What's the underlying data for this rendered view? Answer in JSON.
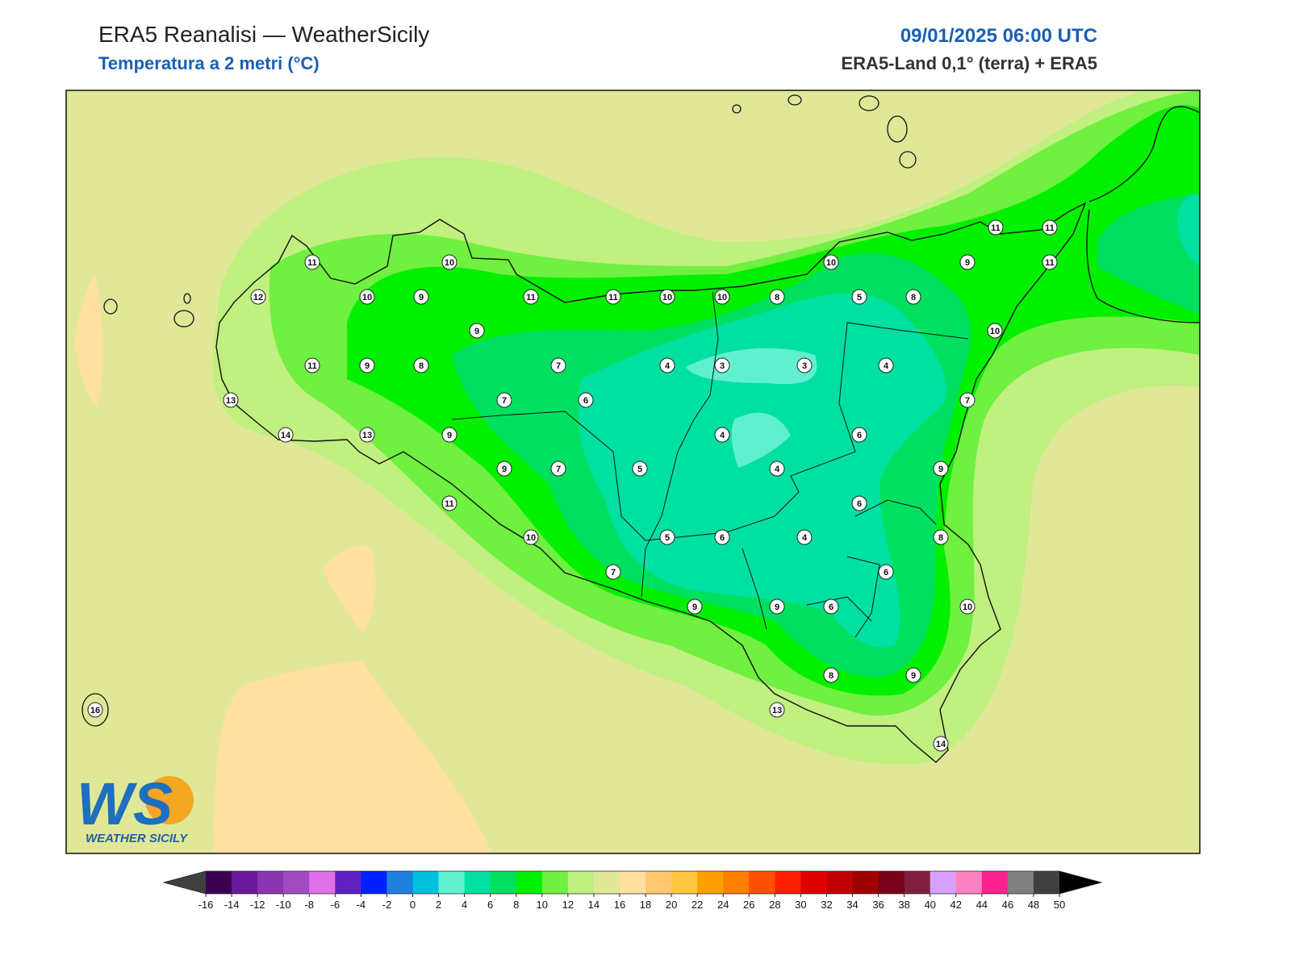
{
  "header": {
    "title": "ERA5 Reanalisi — WeatherSicily",
    "subtitle": "Temperatura a 2 metri (°C)",
    "date": "09/01/2025 06:00 UTC",
    "source": "ERA5-Land 0,1° (terra) + ERA5"
  },
  "map": {
    "station_values": [
      11,
      10,
      12,
      10,
      9,
      11,
      11,
      10,
      10,
      8,
      5,
      8,
      10,
      9,
      11,
      11,
      11,
      9,
      10,
      11,
      9,
      8,
      7,
      4,
      3,
      3,
      4,
      13,
      7,
      6,
      7,
      14,
      13,
      9,
      4,
      6,
      9,
      7,
      5,
      4,
      9,
      11,
      6,
      10,
      5,
      6,
      4,
      8,
      7,
      6,
      9,
      9,
      6,
      10,
      8,
      9,
      13,
      14,
      16
    ]
  },
  "colorbar": {
    "ticks": [
      -16,
      -14,
      -12,
      -10,
      -8,
      -6,
      -4,
      -2,
      0,
      2,
      4,
      6,
      8,
      10,
      12,
      14,
      16,
      18,
      20,
      22,
      24,
      26,
      28,
      30,
      32,
      34,
      36,
      38,
      40,
      42,
      44,
      46,
      48,
      50
    ],
    "colors": [
      "#3b0050",
      "#6a1a9a",
      "#8a36b0",
      "#a04cc0",
      "#e070e8",
      "#6020c0",
      "#0020ff",
      "#2080e0",
      "#00c0e0",
      "#60f0d0",
      "#00e0a0",
      "#00e060",
      "#00f000",
      "#70f040",
      "#c0f080",
      "#e0e898",
      "#ffe0a0",
      "#ffc870",
      "#ffc840",
      "#ffa000",
      "#ff8000",
      "#ff5000",
      "#ff2000",
      "#e00000",
      "#c00000",
      "#a00000",
      "#780018",
      "#802040",
      "#d8a0ff",
      "#ff80c0",
      "#ff2090",
      "#808080",
      "#404040"
    ],
    "under_color": "#404040",
    "over_color": "#000000"
  },
  "logo": {
    "mark": "WS",
    "text": "WEATHER SICILY"
  }
}
